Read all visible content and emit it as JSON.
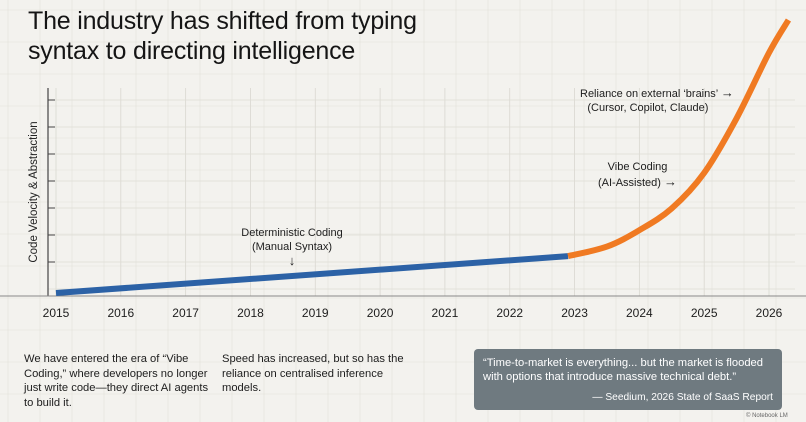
{
  "title_lines": [
    "The industry has shifted from typing",
    "syntax to directing intelligence"
  ],
  "chart_data": {
    "type": "line",
    "title": "The industry has shifted from typing syntax to directing intelligence",
    "xlabel": "",
    "ylabel": "Code Velocity & Abstraction",
    "x_ticks": [
      2015,
      2016,
      2017,
      2018,
      2019,
      2020,
      2021,
      2022,
      2023,
      2024,
      2025,
      2026
    ],
    "xlim": [
      2015,
      2026.3
    ],
    "ylim": [
      0,
      100
    ],
    "grid": true,
    "series": [
      {
        "name": "Deterministic Coding (Manual Syntax)",
        "color": "#2c62a6",
        "x": [
          2015,
          2022.9
        ],
        "y": [
          0,
          13.5
        ]
      },
      {
        "name": "AI-assisted era",
        "color": "#f07a22",
        "x": [
          2022.9,
          2023.5,
          2024,
          2024.5,
          2025,
          2025.5,
          2026,
          2026.3
        ],
        "y": [
          13.5,
          17,
          23,
          31,
          44,
          64,
          88,
          100
        ]
      }
    ],
    "annotations": [
      {
        "lines": [
          "Deterministic Coding",
          "(Manual Syntax)"
        ],
        "arrow": "↓"
      },
      {
        "lines": [
          "Vibe Coding",
          "(AI-Assisted)"
        ],
        "arrow": "→"
      },
      {
        "lines": [
          "Reliance on external ‘brains’",
          "(Cursor, Copilot, Claude)"
        ],
        "arrow": "→"
      }
    ]
  },
  "notes": {
    "left": "We have entered the era of “Vibe Coding,” where developers no longer just write code—they direct AI agents to build it.",
    "middle": "Speed has increased, but so has the reliance on centralised inference models."
  },
  "quote": {
    "text": "“Time-to-market is everything... but the market is flooded with options that introduce massive technical debt.”",
    "attribution": "— Seedium, 2026 State of SaaS Report"
  },
  "fineprint": "© Notebook LM"
}
